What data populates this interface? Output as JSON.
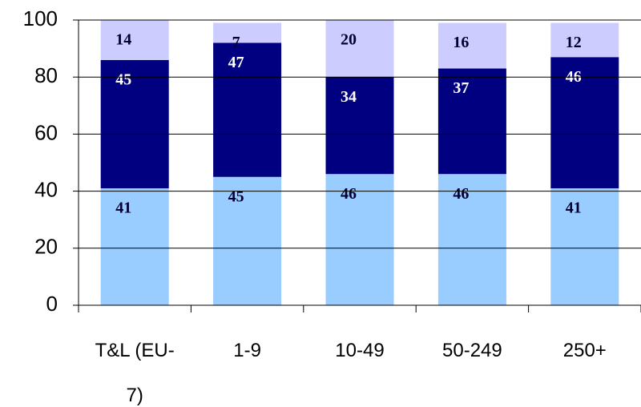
{
  "chart_data": {
    "type": "stacked_bar",
    "categories": [
      "T&L (EU-7)",
      "1-9",
      "10-49",
      "50-249",
      "250+"
    ],
    "series": [
      {
        "color": "#99ccff",
        "label_color": "#000033",
        "values": [
          41,
          45,
          46,
          46,
          41
        ]
      },
      {
        "color": "#000080",
        "label_color": "#ffffff",
        "values": [
          45,
          47,
          34,
          37,
          46
        ]
      },
      {
        "color": "#ccccff",
        "label_color": "#000033",
        "values": [
          14,
          7,
          20,
          16,
          12
        ]
      }
    ],
    "ylim": [
      0,
      100
    ],
    "yticks": [
      0,
      20,
      40,
      60,
      80,
      100
    ],
    "grid": true
  }
}
